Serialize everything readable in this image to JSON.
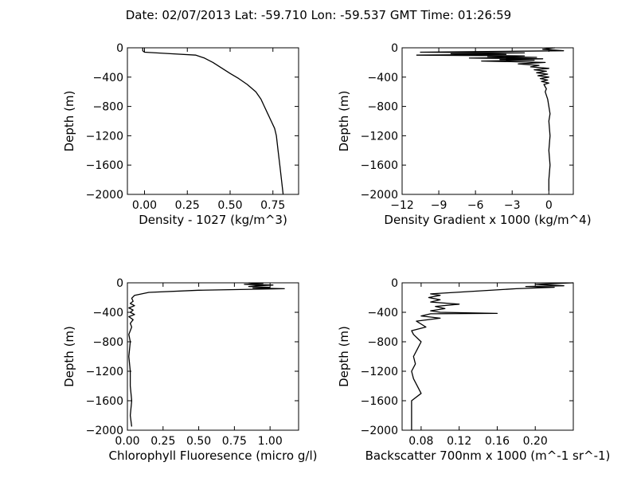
{
  "figure": {
    "title": "Date: 02/07/2013  Lat:  -59.710 Lon:  -59.537  GMT Time: 01:26:59"
  },
  "chart_data": [
    {
      "type": "line",
      "xlabel": "Density - 1027 (kg/m^3)",
      "ylabel": "Depth (m)",
      "xlim": [
        -0.1,
        0.9
      ],
      "ylim": [
        -2000,
        0
      ],
      "xticks": [
        0.0,
        0.25,
        0.5,
        0.75
      ],
      "xtick_labels": [
        "0.00",
        "0.25",
        "0.50",
        "0.75"
      ],
      "yticks": [
        0,
        -400,
        -800,
        -1200,
        -1600,
        -2000
      ],
      "ytick_labels": [
        "0",
        "−400",
        "−800",
        "−1200",
        "−1600",
        "−2000"
      ],
      "series": [
        {
          "x": [
            -0.01,
            -0.01,
            0.0,
            0.15,
            0.3,
            0.35,
            0.4,
            0.44,
            0.5,
            0.55,
            0.6,
            0.65,
            0.68,
            0.7,
            0.72,
            0.74,
            0.76,
            0.77,
            0.78,
            0.79,
            0.8,
            0.81
          ],
          "y": [
            0,
            -40,
            -60,
            -80,
            -100,
            -140,
            -200,
            -260,
            -350,
            -420,
            -500,
            -600,
            -700,
            -800,
            -900,
            -1000,
            -1100,
            -1200,
            -1400,
            -1600,
            -1800,
            -2000
          ]
        }
      ]
    },
    {
      "type": "line",
      "xlabel": "Density Gradient x 1000 (kg/m^4)",
      "ylabel": "Depth (m)",
      "xlim": [
        -12,
        2
      ],
      "ylim": [
        -2000,
        0
      ],
      "xticks": [
        -12,
        -9,
        -6,
        -3,
        0
      ],
      "xtick_labels": [
        "−12",
        "−9",
        "−6",
        "−3",
        "0"
      ],
      "yticks": [
        0,
        -400,
        -800,
        -1200,
        -1600,
        -2000
      ],
      "ytick_labels": [
        "0",
        "−400",
        "−800",
        "−1200",
        "−1600",
        "−2000"
      ],
      "series": [
        {
          "x": [
            0.5,
            -0.5,
            1.2,
            -10.5,
            -2.0,
            -8.0,
            -3.5,
            -10.8,
            -2.0,
            -5.0,
            -1.0,
            -6.5,
            -0.5,
            -4.0,
            -1.2,
            -5.5,
            -0.3,
            -2.5,
            -0.8,
            -1.5,
            0.0,
            -1.2,
            -0.2,
            -1.0,
            -0.1,
            -0.9,
            0.0,
            -0.7,
            -0.1,
            -0.6,
            0.0,
            -0.4,
            -0.2,
            -0.3,
            -0.1,
            0.0,
            0.1,
            0.0,
            0.1,
            0.0,
            0.1,
            0.0,
            0.0
          ],
          "y": [
            0,
            -20,
            -40,
            -60,
            -70,
            -80,
            -90,
            -100,
            -110,
            -120,
            -130,
            -140,
            -150,
            -160,
            -170,
            -180,
            -200,
            -220,
            -240,
            -260,
            -280,
            -300,
            -320,
            -340,
            -360,
            -380,
            -400,
            -420,
            -440,
            -460,
            -480,
            -500,
            -560,
            -600,
            -700,
            -800,
            -900,
            -1000,
            -1200,
            -1400,
            -1600,
            -1800,
            -1950
          ]
        }
      ]
    },
    {
      "type": "line",
      "xlabel": "Chlorophyll Fluoresence (micro g/l)",
      "ylabel": "Depth (m)",
      "xlim": [
        0.0,
        1.2
      ],
      "ylim": [
        -2000,
        0
      ],
      "xticks": [
        0.0,
        0.25,
        0.5,
        0.75,
        1.0
      ],
      "xtick_labels": [
        "0.00",
        "0.25",
        "0.50",
        "0.75",
        "1.00"
      ],
      "yticks": [
        0,
        -400,
        -800,
        -1200,
        -1600,
        -2000
      ],
      "ytick_labels": [
        "0",
        "−400",
        "−800",
        "−1200",
        "−1600",
        "−2000"
      ],
      "series": [
        {
          "x": [
            0.85,
            0.95,
            0.82,
            1.02,
            0.9,
            0.85,
            1.0,
            0.88,
            1.1,
            0.5,
            0.15,
            0.05,
            0.03,
            0.04,
            0.02,
            0.05,
            0.01,
            0.04,
            0.02,
            0.05,
            0.01,
            0.04,
            0.02,
            0.03,
            0.01,
            0.02,
            0.01,
            0.02,
            0.02,
            0.03,
            0.02,
            0.03
          ],
          "y": [
            0,
            -10,
            -20,
            -30,
            -40,
            -50,
            -60,
            -70,
            -80,
            -100,
            -130,
            -170,
            -210,
            -250,
            -280,
            -310,
            -340,
            -370,
            -400,
            -430,
            -460,
            -500,
            -550,
            -600,
            -700,
            -800,
            -1000,
            -1200,
            -1400,
            -1600,
            -1800,
            -1950
          ]
        }
      ]
    },
    {
      "type": "line",
      "xlabel": "Backscatter 700nm x 1000 (m^-1 sr^-1)",
      "ylabel": "Depth (m)",
      "xlim": [
        0.06,
        0.24
      ],
      "ylim": [
        -2000,
        0
      ],
      "xticks": [
        0.08,
        0.12,
        0.16,
        0.2
      ],
      "xtick_labels": [
        "0.08",
        "0.12",
        "0.16",
        "0.20"
      ],
      "yticks": [
        0,
        -400,
        -800,
        -1200,
        -1600,
        -2000
      ],
      "ytick_labels": [
        "0",
        "−400",
        "−800",
        "−1200",
        "−1600",
        "−2000"
      ],
      "series": [
        {
          "x": [
            0.24,
            0.2,
            0.23,
            0.19,
            0.22,
            0.18,
            0.09,
            0.1,
            0.088,
            0.1,
            0.09,
            0.12,
            0.095,
            0.105,
            0.09,
            0.1,
            0.16,
            0.09,
            0.08,
            0.1,
            0.075,
            0.085,
            0.07,
            0.072,
            0.08,
            0.076,
            0.072,
            0.074,
            0.07,
            0.072,
            0.08,
            0.07,
            0.07
          ],
          "y": [
            0,
            -20,
            -40,
            -50,
            -60,
            -80,
            -150,
            -170,
            -200,
            -230,
            -260,
            -290,
            -320,
            -350,
            -380,
            -400,
            -415,
            -420,
            -450,
            -480,
            -520,
            -600,
            -650,
            -700,
            -800,
            -900,
            -1000,
            -1100,
            -1200,
            -1300,
            -1500,
            -1600,
            -2000
          ]
        }
      ]
    }
  ]
}
